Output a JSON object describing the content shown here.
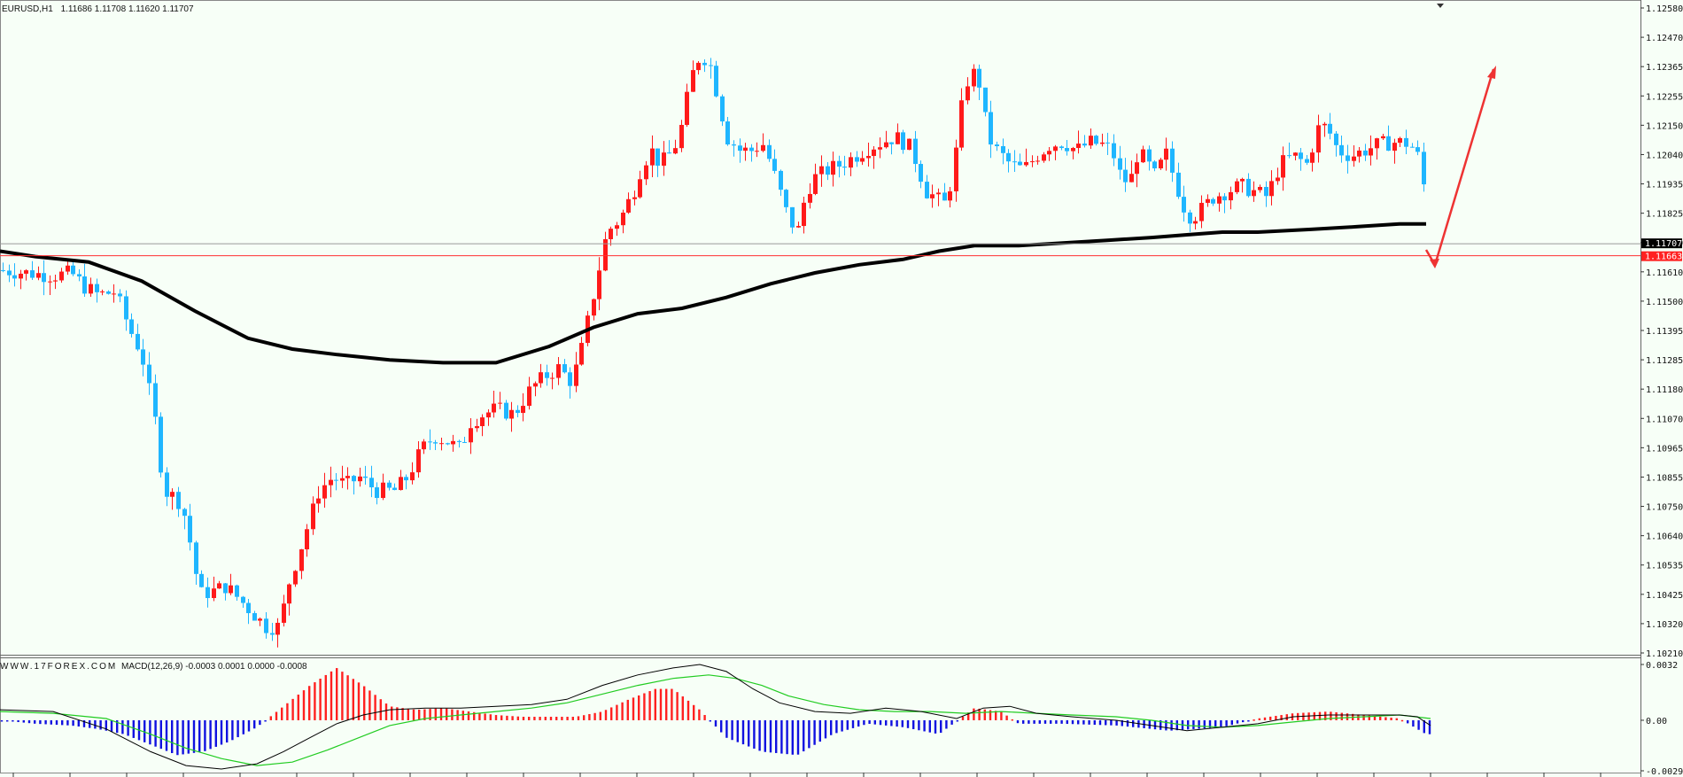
{
  "header": {
    "symbol": "EURUSD,H1",
    "ohlc": "1.11686 1.11708 1.11620 1.11707"
  },
  "indicator_header": {
    "watermark": "WWW.17FOREX.COM",
    "macd_label": "MACD(12,26,9) -0.0003 0.0001 0.0000 -0.0008"
  },
  "price_axis": {
    "ticks": [
      "1.12580",
      "1.12470",
      "1.12365",
      "1.12255",
      "1.12150",
      "1.12040",
      "1.11935",
      "1.11825",
      "1.11720",
      "1.11610",
      "1.11500",
      "1.11395",
      "1.11285",
      "1.11180",
      "1.11070",
      "1.10965",
      "1.10855",
      "1.10750",
      "1.10640",
      "1.10535",
      "1.10425",
      "1.10320",
      "1.10210"
    ],
    "current_price_tag": "1.11707",
    "line_price_tag": "1.11663"
  },
  "macd_axis": {
    "ticks": [
      "0.0032",
      "0.00",
      "-0.0029"
    ]
  },
  "colors": {
    "background": "#f7fff7",
    "bull": "#ff1a1a",
    "bear": "#1fb6ff",
    "ma": "#000000",
    "macd_pos": "#ff2020",
    "macd_neg": "#1010e0",
    "signal": "#22cc22",
    "arrow": "#ee3333",
    "hline_price": "#ff3030",
    "hline_current": "#888888"
  },
  "chart_data": {
    "type": "candlestick",
    "symbol": "EURUSD",
    "timeframe": "H1",
    "ylim": [
      1.1021,
      1.1258
    ],
    "moving_average": [
      [
        0,
        1.1168
      ],
      [
        40,
        1.1166
      ],
      [
        100,
        1.1164
      ],
      [
        160,
        1.1157
      ],
      [
        220,
        1.1146
      ],
      [
        280,
        1.1136
      ],
      [
        330,
        1.1132
      ],
      [
        380,
        1.113
      ],
      [
        440,
        1.1128
      ],
      [
        500,
        1.1127
      ],
      [
        560,
        1.1127
      ],
      [
        620,
        1.1133
      ],
      [
        670,
        1.114
      ],
      [
        720,
        1.1145
      ],
      [
        770,
        1.1147
      ],
      [
        820,
        1.1151
      ],
      [
        870,
        1.1156
      ],
      [
        920,
        1.116
      ],
      [
        970,
        1.1163
      ],
      [
        1020,
        1.1165
      ],
      [
        1060,
        1.1168
      ],
      [
        1100,
        1.117
      ],
      [
        1150,
        1.117
      ],
      [
        1200,
        1.1171
      ],
      [
        1250,
        1.1172
      ],
      [
        1300,
        1.1173
      ],
      [
        1340,
        1.1174
      ],
      [
        1380,
        1.1175
      ],
      [
        1420,
        1.1175
      ],
      [
        1480,
        1.1176
      ],
      [
        1533,
        1.1177
      ],
      [
        1580,
        1.1178
      ],
      [
        1610,
        1.1178
      ]
    ],
    "macd_histogram": [
      [
        0,
        0.0
      ],
      [
        40,
        -0.0002
      ],
      [
        80,
        -0.0003
      ],
      [
        110,
        -0.0005
      ],
      [
        140,
        -0.0008
      ],
      [
        170,
        -0.0014
      ],
      [
        200,
        -0.002
      ],
      [
        230,
        -0.0018
      ],
      [
        260,
        -0.0012
      ],
      [
        290,
        -0.0004
      ],
      [
        320,
        0.0008
      ],
      [
        350,
        0.002
      ],
      [
        380,
        0.003
      ],
      [
        410,
        0.002
      ],
      [
        440,
        0.0008
      ],
      [
        470,
        0.0006
      ],
      [
        500,
        0.0007
      ],
      [
        530,
        0.0005
      ],
      [
        560,
        0.0003
      ],
      [
        590,
        0.0002
      ],
      [
        620,
        0.0002
      ],
      [
        650,
        0.0002
      ],
      [
        680,
        0.0005
      ],
      [
        710,
        0.0012
      ],
      [
        740,
        0.0018
      ],
      [
        760,
        0.0018
      ],
      [
        790,
        0.0006
      ],
      [
        820,
        -0.001
      ],
      [
        860,
        -0.0018
      ],
      [
        900,
        -0.002
      ],
      [
        940,
        -0.0008
      ],
      [
        980,
        -0.0002
      ],
      [
        1020,
        -0.0004
      ],
      [
        1060,
        -0.0008
      ],
      [
        1100,
        0.0007
      ],
      [
        1130,
        0.0005
      ],
      [
        1150,
        -0.0002
      ],
      [
        1200,
        -0.0002
      ],
      [
        1260,
        -0.0003
      ],
      [
        1320,
        -0.0006
      ],
      [
        1380,
        -0.0004
      ],
      [
        1420,
        0.0001
      ],
      [
        1460,
        0.0004
      ],
      [
        1500,
        0.0005
      ],
      [
        1540,
        0.0003
      ],
      [
        1580,
        0.0001
      ],
      [
        1610,
        -0.0008
      ]
    ],
    "macd_line": [
      [
        0,
        0.0006
      ],
      [
        60,
        0.0005
      ],
      [
        120,
        -0.0005
      ],
      [
        170,
        -0.0018
      ],
      [
        210,
        -0.0026
      ],
      [
        250,
        -0.0028
      ],
      [
        290,
        -0.0025
      ],
      [
        320,
        -0.0018
      ],
      [
        350,
        -0.001
      ],
      [
        380,
        -0.0002
      ],
      [
        410,
        0.0003
      ],
      [
        440,
        0.0006
      ],
      [
        480,
        0.0007
      ],
      [
        520,
        0.0007
      ],
      [
        560,
        0.0008
      ],
      [
        600,
        0.0009
      ],
      [
        640,
        0.0012
      ],
      [
        680,
        0.002
      ],
      [
        720,
        0.0026
      ],
      [
        760,
        0.003
      ],
      [
        790,
        0.0032
      ],
      [
        820,
        0.0028
      ],
      [
        850,
        0.0018
      ],
      [
        880,
        0.001
      ],
      [
        920,
        0.0005
      ],
      [
        960,
        0.0004
      ],
      [
        1000,
        0.0007
      ],
      [
        1040,
        0.0005
      ],
      [
        1080,
        0.0001
      ],
      [
        1110,
        0.0007
      ],
      [
        1140,
        0.0008
      ],
      [
        1170,
        0.0004
      ],
      [
        1210,
        0.0002
      ],
      [
        1260,
        0.0
      ],
      [
        1300,
        -0.0003
      ],
      [
        1340,
        -0.0006
      ],
      [
        1380,
        -0.0004
      ],
      [
        1420,
        -0.0002
      ],
      [
        1460,
        0.0002
      ],
      [
        1500,
        0.0003
      ],
      [
        1540,
        0.0003
      ],
      [
        1580,
        0.0003
      ],
      [
        1600,
        0.0002
      ],
      [
        1615,
        -0.0003
      ]
    ],
    "signal_line": [
      [
        0,
        0.0005
      ],
      [
        60,
        0.0004
      ],
      [
        120,
        0.0001
      ],
      [
        170,
        -0.0008
      ],
      [
        210,
        -0.0016
      ],
      [
        250,
        -0.0022
      ],
      [
        290,
        -0.0026
      ],
      [
        330,
        -0.0024
      ],
      [
        370,
        -0.0017
      ],
      [
        410,
        -0.0009
      ],
      [
        440,
        -0.0003
      ],
      [
        480,
        0.0001
      ],
      [
        520,
        0.0003
      ],
      [
        560,
        0.0005
      ],
      [
        600,
        0.0007
      ],
      [
        640,
        0.001
      ],
      [
        680,
        0.0015
      ],
      [
        720,
        0.002
      ],
      [
        760,
        0.0024
      ],
      [
        800,
        0.0026
      ],
      [
        830,
        0.0024
      ],
      [
        860,
        0.002
      ],
      [
        890,
        0.0014
      ],
      [
        930,
        0.0009
      ],
      [
        970,
        0.0006
      ],
      [
        1010,
        0.0005
      ],
      [
        1050,
        0.0005
      ],
      [
        1090,
        0.0004
      ],
      [
        1130,
        0.0005
      ],
      [
        1170,
        0.0004
      ],
      [
        1210,
        0.0003
      ],
      [
        1260,
        0.0002
      ],
      [
        1300,
        0.0
      ],
      [
        1340,
        -0.0003
      ],
      [
        1380,
        -0.0004
      ],
      [
        1420,
        -0.0003
      ],
      [
        1460,
        -0.0001
      ],
      [
        1500,
        0.0001
      ],
      [
        1540,
        0.0002
      ],
      [
        1580,
        0.0003
      ],
      [
        1615,
        0.0001
      ]
    ],
    "current_price": 1.11707,
    "horizontal_line": 1.11663
  }
}
